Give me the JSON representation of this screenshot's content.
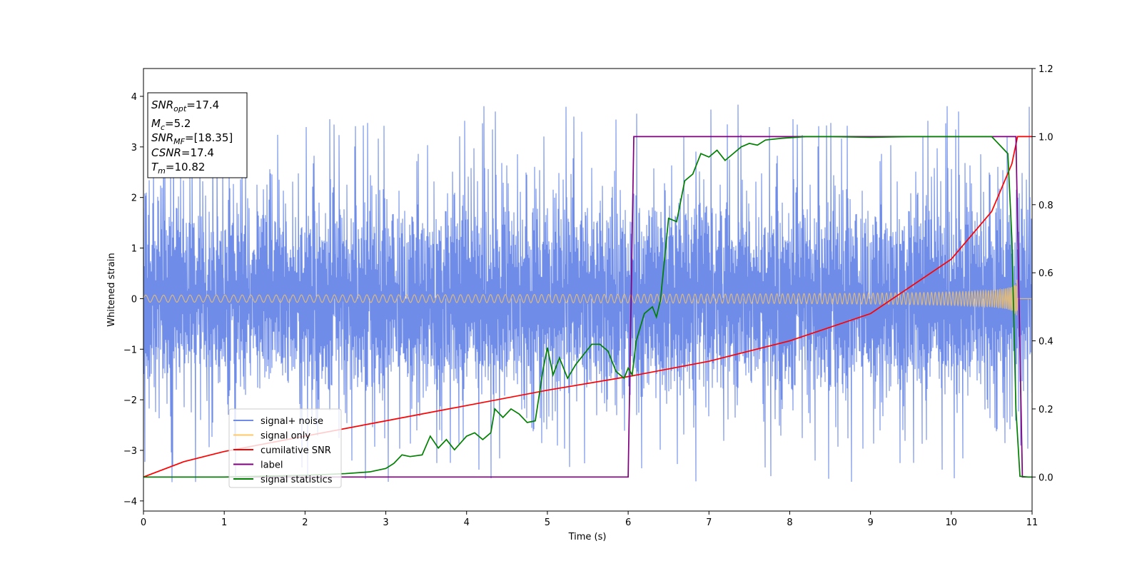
{
  "chart_data": {
    "type": "line",
    "xlabel": "Time (s)",
    "ylabel": "Whitened strain",
    "xlim": [
      0,
      11
    ],
    "ylim": [
      -4.2,
      4.55
    ],
    "y2lim": [
      -0.1,
      1.2
    ],
    "x_ticks": [
      0,
      1,
      2,
      3,
      4,
      5,
      6,
      7,
      8,
      9,
      10,
      11
    ],
    "y_ticks": [
      -4,
      -3,
      -2,
      -1,
      0,
      1,
      2,
      3,
      4
    ],
    "y2_ticks": [
      0.0,
      0.2,
      0.4,
      0.6,
      0.8,
      1.0,
      1.2
    ],
    "x_tick_labels": [
      "0",
      "1",
      "2",
      "3",
      "4",
      "5",
      "6",
      "7",
      "8",
      "9",
      "10",
      "11"
    ],
    "y_tick_labels": [
      "−4",
      "−3",
      "−2",
      "−1",
      "0",
      "1",
      "2",
      "3",
      "4"
    ],
    "y2_tick_labels": [
      "0.0",
      "0.2",
      "0.4",
      "0.6",
      "0.8",
      "1.0",
      "1.2"
    ],
    "legend_location": "lower-left",
    "grid": false,
    "info_box": {
      "snr_opt": {
        "base": "SNR",
        "sub": "opt",
        "value": "=17.4"
      },
      "mc": {
        "base": "M",
        "sub": "c",
        "value": "=5.2"
      },
      "snr_mf": {
        "base": "SNR",
        "sub": "MF",
        "value": "=[18.35]"
      },
      "csnr": {
        "base": "CSNR",
        "value": "=17.4"
      },
      "tm": {
        "base": "T",
        "sub": "m",
        "value": "=10.82"
      }
    },
    "series": [
      {
        "name": "signal+ noise",
        "axis": "left",
        "color": "#6e8ce8",
        "style": "noise band",
        "approx_range": [
          -3.8,
          4.15
        ],
        "typical_envelope": [
          -1.4,
          1.4
        ]
      },
      {
        "name": "signal only",
        "axis": "left",
        "color": "#ffc864",
        "style": "chirp",
        "amplitude_start": 0.07,
        "amplitude_peak": 1.0,
        "merger_time": 10.82
      },
      {
        "name": "cumilative SNR",
        "axis": "right",
        "color": "#ff0000",
        "x": [
          0,
          0.5,
          1,
          2,
          3,
          4,
          5,
          6,
          7,
          8,
          9,
          10,
          10.5,
          10.75,
          10.82,
          11
        ],
        "y": [
          0.0,
          0.045,
          0.075,
          0.12,
          0.165,
          0.21,
          0.255,
          0.295,
          0.34,
          0.4,
          0.48,
          0.64,
          0.78,
          0.92,
          1.0,
          1.0
        ]
      },
      {
        "name": "label",
        "axis": "right",
        "color": "#800080",
        "x": [
          0,
          6.0,
          6.07,
          10.8,
          10.88,
          11
        ],
        "y": [
          0,
          0,
          1,
          1,
          0,
          0
        ]
      },
      {
        "name": "signal statistics",
        "axis": "right",
        "color": "#008000",
        "x": [
          0,
          1,
          2,
          2.5,
          2.8,
          3.0,
          3.1,
          3.2,
          3.3,
          3.45,
          3.55,
          3.65,
          3.75,
          3.85,
          4.0,
          4.1,
          4.2,
          4.3,
          4.35,
          4.45,
          4.55,
          4.65,
          4.75,
          4.85,
          4.95,
          5.0,
          5.07,
          5.15,
          5.25,
          5.35,
          5.45,
          5.55,
          5.65,
          5.75,
          5.85,
          5.95,
          6.0,
          6.05,
          6.1,
          6.2,
          6.3,
          6.35,
          6.4,
          6.5,
          6.6,
          6.7,
          6.8,
          6.9,
          7.0,
          7.1,
          7.2,
          7.3,
          7.4,
          7.5,
          7.6,
          7.7,
          7.9,
          8.2,
          8.5,
          9.0,
          9.5,
          10.0,
          10.5,
          10.7,
          10.75,
          10.8,
          10.85,
          10.95,
          11
        ],
        "y": [
          0.0,
          0.0,
          0.005,
          0.01,
          0.015,
          0.025,
          0.04,
          0.065,
          0.06,
          0.065,
          0.12,
          0.085,
          0.11,
          0.08,
          0.12,
          0.13,
          0.11,
          0.13,
          0.2,
          0.175,
          0.2,
          0.185,
          0.16,
          0.165,
          0.32,
          0.38,
          0.3,
          0.35,
          0.29,
          0.33,
          0.36,
          0.39,
          0.39,
          0.37,
          0.31,
          0.29,
          0.32,
          0.3,
          0.4,
          0.48,
          0.5,
          0.47,
          0.52,
          0.76,
          0.75,
          0.87,
          0.89,
          0.95,
          0.94,
          0.96,
          0.93,
          0.95,
          0.97,
          0.98,
          0.975,
          0.99,
          0.995,
          1.0,
          1.0,
          0.998,
          1.0,
          1.0,
          1.0,
          0.95,
          0.7,
          0.2,
          0.002,
          0.0,
          0.0
        ]
      }
    ]
  }
}
